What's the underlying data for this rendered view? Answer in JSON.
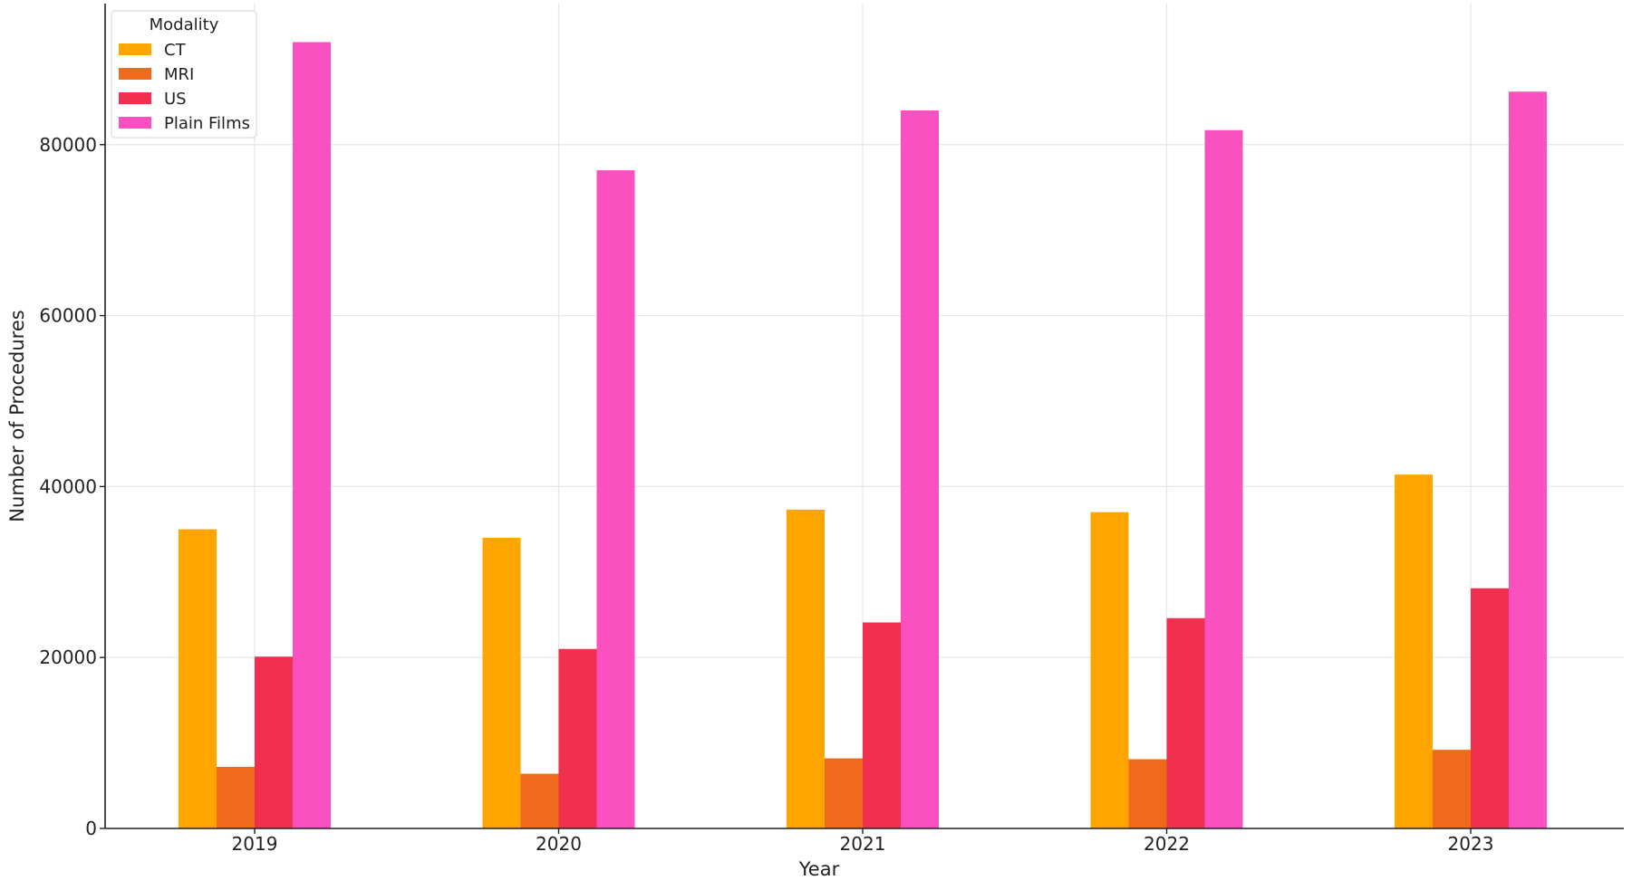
{
  "chart_data": {
    "type": "bar",
    "title": "",
    "xlabel": "Year",
    "ylabel": "Number of Procedures",
    "categories": [
      "2019",
      "2020",
      "2021",
      "2022",
      "2023"
    ],
    "series": [
      {
        "name": "CT",
        "color": "#FFA500",
        "values": [
          35000,
          34000,
          37300,
          37000,
          41400
        ]
      },
      {
        "name": "MRI",
        "color": "#F06A1E",
        "values": [
          7200,
          6400,
          8200,
          8100,
          9200
        ]
      },
      {
        "name": "US",
        "color": "#F0304E",
        "values": [
          20100,
          21000,
          24100,
          24600,
          28100
        ]
      },
      {
        "name": "Plain Films",
        "color": "#FA50C0",
        "values": [
          92000,
          77000,
          84000,
          81700,
          86200
        ]
      }
    ],
    "ylim": [
      0,
      96500
    ],
    "yticks": [
      0,
      20000,
      40000,
      60000,
      80000
    ],
    "grid": true,
    "legend": {
      "title": "Modality",
      "placement": "top-left"
    }
  }
}
